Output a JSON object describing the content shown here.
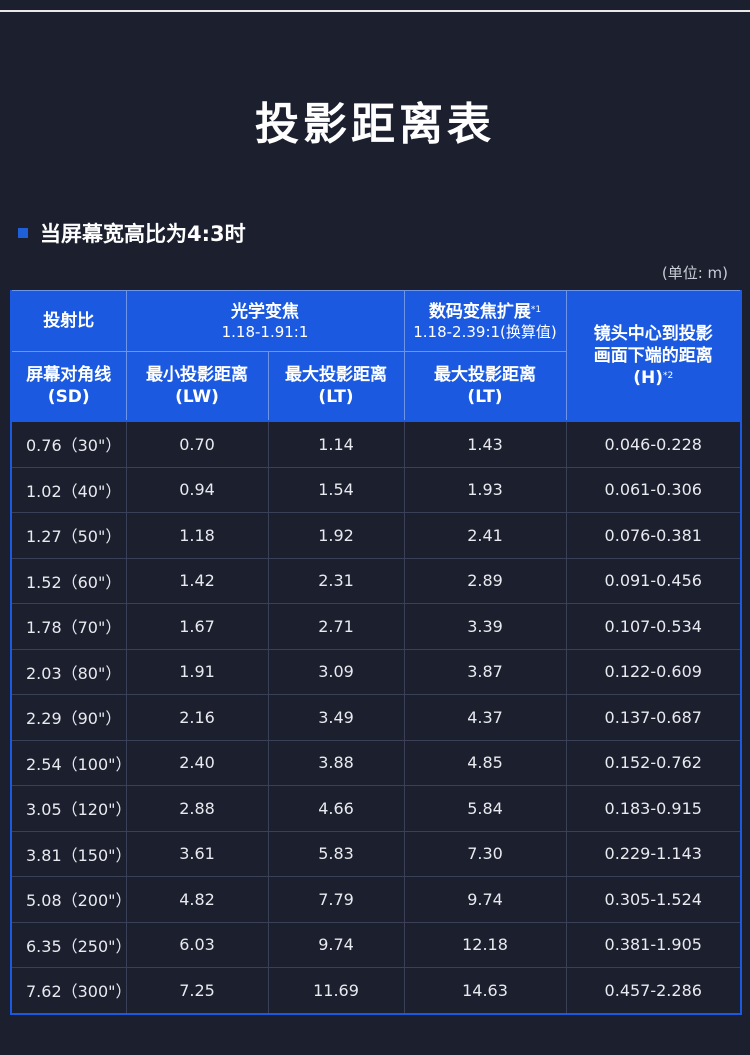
{
  "page_title": "投影距离表",
  "section": {
    "title": "当屏幕宽高比为4:3时"
  },
  "unit_note": "(单位: m)",
  "table": {
    "headers": {
      "ratio": "投射比",
      "optical_zoom": "光学变焦",
      "optical_zoom_range": "1.18-1.91:1",
      "digital_zoom": "数码变焦扩展",
      "digital_zoom_note": "*1",
      "digital_zoom_range": "1.18-2.39:1(换算值)",
      "lens_height_line1": "镜头中心到投影",
      "lens_height_line2": "画面下端的距离",
      "lens_height_line3": "(H)",
      "lens_height_note": "*2",
      "diagonal": "屏幕对角线",
      "diagonal_abbr": "(SD)",
      "min_distance": "最小投影距离",
      "min_distance_abbr": "(LW)",
      "max_distance": "最大投影距离",
      "max_distance_abbr": "(LT)",
      "digital_max_distance": "最大投影距离",
      "digital_max_distance_abbr": "(LT)"
    },
    "rows": [
      {
        "sd": "0.76（30\"）",
        "lw": "0.70",
        "lt": "1.14",
        "lt_digital": "1.43",
        "h": "0.046-0.228"
      },
      {
        "sd": "1.02（40\"）",
        "lw": "0.94",
        "lt": "1.54",
        "lt_digital": "1.93",
        "h": "0.061-0.306"
      },
      {
        "sd": "1.27（50\"）",
        "lw": "1.18",
        "lt": "1.92",
        "lt_digital": "2.41",
        "h": "0.076-0.381"
      },
      {
        "sd": "1.52（60\"）",
        "lw": "1.42",
        "lt": "2.31",
        "lt_digital": "2.89",
        "h": "0.091-0.456"
      },
      {
        "sd": "1.78（70\"）",
        "lw": "1.67",
        "lt": "2.71",
        "lt_digital": "3.39",
        "h": "0.107-0.534"
      },
      {
        "sd": "2.03（80\"）",
        "lw": "1.91",
        "lt": "3.09",
        "lt_digital": "3.87",
        "h": "0.122-0.609"
      },
      {
        "sd": "2.29（90\"）",
        "lw": "2.16",
        "lt": "3.49",
        "lt_digital": "4.37",
        "h": "0.137-0.687"
      },
      {
        "sd": "2.54（100\"）",
        "lw": "2.40",
        "lt": "3.88",
        "lt_digital": "4.85",
        "h": "0.152-0.762"
      },
      {
        "sd": "3.05（120\"）",
        "lw": "2.88",
        "lt": "4.66",
        "lt_digital": "5.84",
        "h": "0.183-0.915"
      },
      {
        "sd": "3.81（150\"）",
        "lw": "3.61",
        "lt": "5.83",
        "lt_digital": "7.30",
        "h": "0.229-1.143"
      },
      {
        "sd": "5.08（200\"）",
        "lw": "4.82",
        "lt": "7.79",
        "lt_digital": "9.74",
        "h": "0.305-1.524"
      },
      {
        "sd": "6.35（250\"）",
        "lw": "6.03",
        "lt": "9.74",
        "lt_digital": "12.18",
        "h": "0.381-1.905"
      },
      {
        "sd": "7.62（300\"）",
        "lw": "7.25",
        "lt": "11.69",
        "lt_digital": "14.63",
        "h": "0.457-2.286"
      }
    ]
  }
}
